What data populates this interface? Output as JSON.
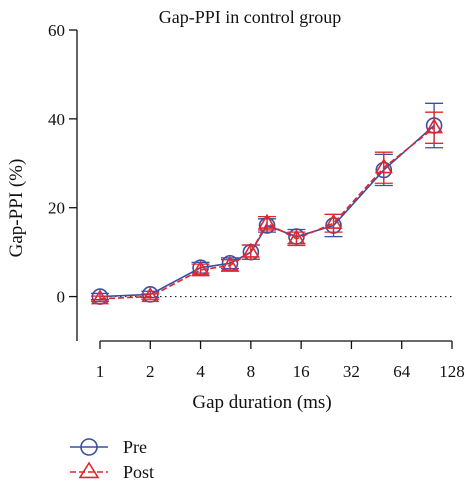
{
  "chart_data": {
    "type": "line",
    "title": "Gap-PPI in control group",
    "xlabel": "Gap duration (ms)",
    "ylabel": "Gap-PPI (%)",
    "x_scale": "log2",
    "xlim": [
      1,
      128
    ],
    "ylim": [
      -10,
      60
    ],
    "x_ticks": [
      1,
      2,
      4,
      8,
      16,
      32,
      64,
      128
    ],
    "x_tick_labels": [
      "1",
      "2",
      "4",
      "8",
      "16",
      "32",
      "64",
      "128"
    ],
    "y_ticks": [
      0,
      20,
      40,
      60
    ],
    "y_tick_labels": [
      "0",
      "20",
      "40",
      "60"
    ],
    "zero_reference_line": "dotted",
    "legend_position": "bottom-left",
    "series": [
      {
        "name": "Pre",
        "marker": "circle",
        "color": "#3a4fa0",
        "line_style": "solid",
        "x": [
          1,
          2,
          4,
          6,
          8,
          10,
          15,
          25,
          50,
          100
        ],
        "y": [
          0,
          0.5,
          6.5,
          7.5,
          10,
          16,
          13.5,
          16,
          28.5,
          38.5
        ],
        "error": [
          0.7,
          0.7,
          1.2,
          1.2,
          1.6,
          1.5,
          1.6,
          2.5,
          3.5,
          5
        ]
      },
      {
        "name": "Post",
        "marker": "triangle",
        "color": "#e0262e",
        "line_style": "dashed",
        "x": [
          1,
          2,
          4,
          6,
          8,
          10,
          15,
          25,
          50,
          100
        ],
        "y": [
          -0.5,
          0,
          6,
          7,
          10,
          16.5,
          13,
          16.5,
          29,
          38
        ],
        "error": [
          0.6,
          0.6,
          1.3,
          1.3,
          1.6,
          1.5,
          1.5,
          2,
          3.5,
          3.5
        ]
      }
    ]
  }
}
